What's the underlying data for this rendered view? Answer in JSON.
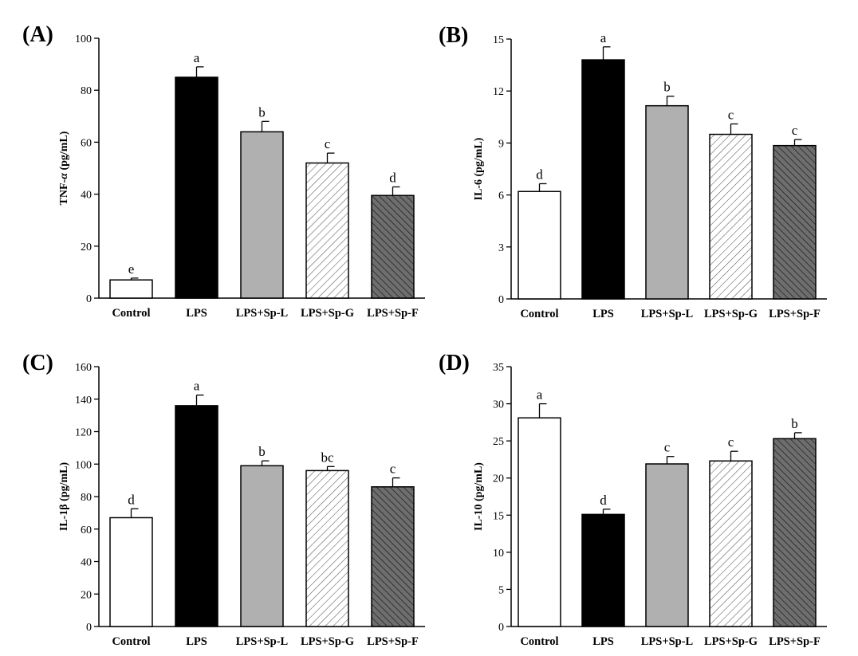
{
  "figure": {
    "categories": [
      "Control",
      "LPS",
      "LPS+Sp-L",
      "LPS+Sp-G",
      "LPS+Sp-F"
    ],
    "bar_styles": [
      {
        "fill": "#ffffff",
        "pattern": "none"
      },
      {
        "fill": "#000000",
        "pattern": "none"
      },
      {
        "fill": "#b0b0b0",
        "pattern": "none"
      },
      {
        "fill": "#ffffff",
        "pattern": "hatch-light"
      },
      {
        "fill": "#6a6a6a",
        "pattern": "hatch-dark"
      }
    ]
  },
  "chart_data": [
    {
      "type": "bar",
      "panel_label": "(A)",
      "ylabel_parts": [
        [
          "TNF-",
          false
        ],
        [
          "α",
          true
        ],
        [
          " (pg/mL)",
          false
        ]
      ],
      "ylim": [
        0,
        100
      ],
      "yticks": [
        0,
        20,
        40,
        60,
        80,
        100
      ],
      "categories": [
        "Control",
        "LPS",
        "LPS+Sp-L",
        "LPS+Sp-G",
        "LPS+Sp-F"
      ],
      "values": [
        7,
        85,
        64,
        52,
        39.5
      ],
      "errors": [
        0.7,
        4,
        4,
        3.8,
        3.3
      ],
      "significance": [
        "e",
        "a",
        "b",
        "c",
        "d"
      ]
    },
    {
      "type": "bar",
      "panel_label": "(B)",
      "ylabel_parts": [
        [
          "IL-6 (pg/mL)",
          false
        ]
      ],
      "ylim": [
        0,
        15
      ],
      "yticks": [
        0,
        3,
        6,
        9,
        12,
        15
      ],
      "categories": [
        "Control",
        "LPS",
        "LPS+Sp-L",
        "LPS+Sp-G",
        "LPS+Sp-F"
      ],
      "values": [
        6.2,
        13.8,
        11.15,
        9.5,
        8.85
      ],
      "errors": [
        0.45,
        0.75,
        0.55,
        0.6,
        0.35
      ],
      "significance": [
        "d",
        "a",
        "b",
        "c",
        "c"
      ]
    },
    {
      "type": "bar",
      "panel_label": "(C)",
      "ylabel_parts": [
        [
          "IL-1β (pg/mL)",
          false
        ]
      ],
      "ylim": [
        0,
        160
      ],
      "yticks": [
        0,
        20,
        40,
        60,
        80,
        100,
        120,
        140,
        160
      ],
      "categories": [
        "Control",
        "LPS",
        "LPS+Sp-L",
        "LPS+Sp-G",
        "LPS+Sp-F"
      ],
      "values": [
        67,
        136,
        99,
        96,
        86
      ],
      "errors": [
        5.5,
        6.5,
        3,
        2.5,
        5.5
      ],
      "significance": [
        "d",
        "a",
        "b",
        "bc",
        "c"
      ]
    },
    {
      "type": "bar",
      "panel_label": "(D)",
      "ylabel_parts": [
        [
          "IL-10 (pg/mL)",
          false
        ]
      ],
      "ylim": [
        0,
        35
      ],
      "yticks": [
        0,
        5,
        10,
        15,
        20,
        25,
        30,
        35
      ],
      "categories": [
        "Control",
        "LPS",
        "LPS+Sp-L",
        "LPS+Sp-G",
        "LPS+Sp-F"
      ],
      "values": [
        28.1,
        15.1,
        21.9,
        22.3,
        25.3
      ],
      "errors": [
        1.9,
        0.7,
        1,
        1.3,
        0.8
      ],
      "significance": [
        "a",
        "d",
        "c",
        "c",
        "b"
      ]
    }
  ]
}
